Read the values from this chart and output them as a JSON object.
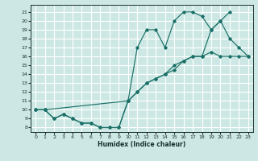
{
  "xlabel": "Humidex (Indice chaleur)",
  "bg_color": "#cde8e4",
  "grid_color": "#ffffff",
  "line_color": "#1a7068",
  "xlim": [
    -0.5,
    23.5
  ],
  "ylim": [
    7.5,
    21.8
  ],
  "xticks": [
    0,
    1,
    2,
    3,
    4,
    5,
    6,
    7,
    8,
    9,
    10,
    11,
    12,
    13,
    14,
    15,
    16,
    17,
    18,
    19,
    20,
    21,
    22,
    23
  ],
  "yticks": [
    8,
    9,
    10,
    11,
    12,
    13,
    14,
    15,
    16,
    17,
    18,
    19,
    20,
    21
  ],
  "line_arch": {
    "x": [
      0,
      1,
      2,
      3,
      4,
      5,
      6,
      7,
      8,
      9,
      10,
      11,
      12,
      13,
      14,
      15,
      16,
      17,
      18,
      19,
      20,
      21
    ],
    "y": [
      10,
      10,
      9,
      9.5,
      9,
      8.5,
      8.5,
      8,
      8,
      8,
      11,
      17,
      19,
      19,
      17,
      20,
      21,
      21,
      20.5,
      19,
      20,
      21
    ]
  },
  "line_diag": {
    "x": [
      0,
      1,
      2,
      3,
      4,
      5,
      6,
      7,
      8,
      9,
      10,
      11,
      12,
      13,
      14,
      15,
      16,
      17,
      18,
      19,
      20,
      21,
      22,
      23
    ],
    "y": [
      10,
      10,
      9,
      9.5,
      9,
      8.5,
      8.5,
      8,
      8,
      8,
      11,
      12,
      13,
      13.5,
      14,
      14.5,
      15.5,
      16,
      16,
      16.5,
      16,
      16,
      16,
      16
    ]
  },
  "line_top": {
    "x": [
      0,
      1,
      10,
      11,
      12,
      13,
      14,
      15,
      16,
      17,
      18,
      19,
      20,
      21,
      22,
      23
    ],
    "y": [
      10,
      10,
      11,
      12,
      13,
      13.5,
      14,
      15,
      15.5,
      16,
      16,
      19,
      20,
      18,
      17,
      16
    ]
  }
}
